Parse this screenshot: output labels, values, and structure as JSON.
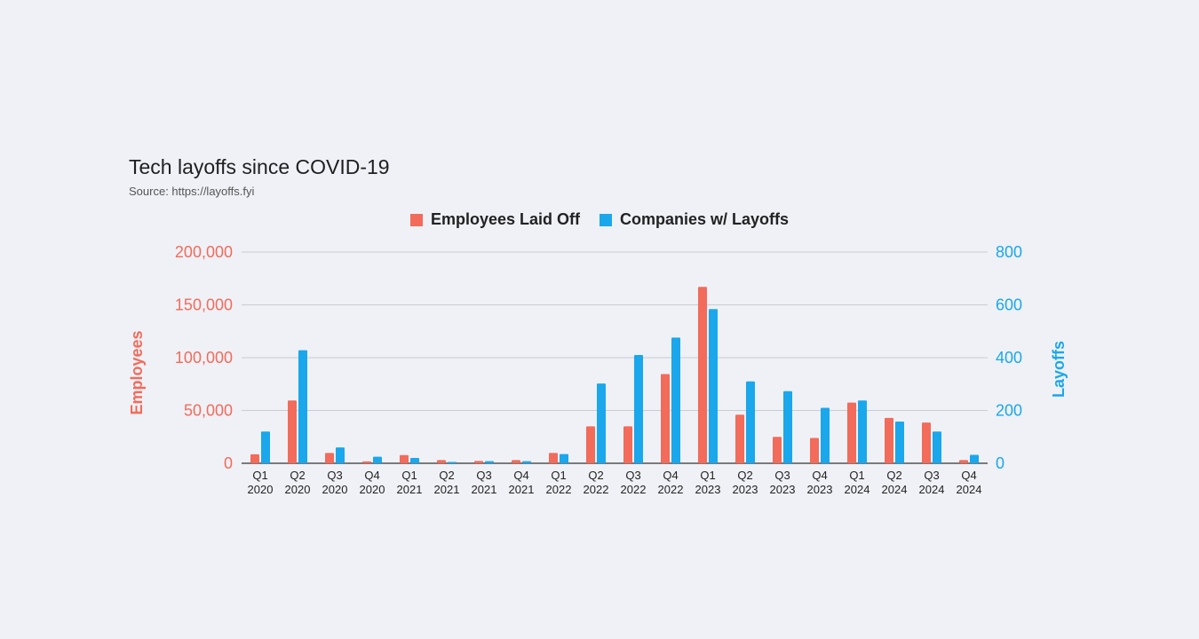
{
  "colors": {
    "employees": "#f26b5b",
    "companies": "#1aa7ec",
    "grid": "#c9ccd2"
  },
  "chart_data": {
    "type": "bar",
    "title": "Tech layoffs since COVID-19",
    "subtitle": "Source: https://layoffs.fyi",
    "legend_position": "top-center",
    "grid": true,
    "categories": [
      [
        "Q1",
        "2020"
      ],
      [
        "Q2",
        "2020"
      ],
      [
        "Q3",
        "2020"
      ],
      [
        "Q4",
        "2020"
      ],
      [
        "Q1",
        "2021"
      ],
      [
        "Q2",
        "2021"
      ],
      [
        "Q3",
        "2021"
      ],
      [
        "Q4",
        "2021"
      ],
      [
        "Q1",
        "2022"
      ],
      [
        "Q2",
        "2022"
      ],
      [
        "Q3",
        "2022"
      ],
      [
        "Q4",
        "2022"
      ],
      [
        "Q1",
        "2023"
      ],
      [
        "Q2",
        "2023"
      ],
      [
        "Q3",
        "2023"
      ],
      [
        "Q4",
        "2023"
      ],
      [
        "Q1",
        "2024"
      ],
      [
        "Q2",
        "2024"
      ],
      [
        "Q3",
        "2024"
      ],
      [
        "Q4",
        "2024"
      ]
    ],
    "series": [
      {
        "name": "Employees Laid Off",
        "axis": "left",
        "values": [
          8500,
          59500,
          9800,
          1800,
          7800,
          3000,
          2200,
          3000,
          9800,
          35000,
          35000,
          84500,
          167000,
          46000,
          25000,
          24000,
          57500,
          43000,
          38500,
          3000
        ]
      },
      {
        "name": "Companies w/ Layoffs",
        "axis": "right",
        "values": [
          120,
          428,
          60,
          25,
          20,
          5,
          8,
          8,
          35,
          302,
          410,
          476,
          584,
          310,
          273,
          210,
          238,
          158,
          120,
          32
        ]
      }
    ],
    "y_left": {
      "label": "Employees",
      "range": [
        0,
        200000
      ],
      "ticks": [
        0,
        50000,
        100000,
        150000,
        200000
      ],
      "tick_labels": [
        "0",
        "50,000",
        "100,000",
        "150,000",
        "200,000"
      ]
    },
    "y_right": {
      "label": "Layoffs",
      "range": [
        0,
        800
      ],
      "ticks": [
        0,
        200,
        400,
        600,
        800
      ],
      "tick_labels": [
        "0",
        "200",
        "400",
        "600",
        "800"
      ]
    }
  }
}
